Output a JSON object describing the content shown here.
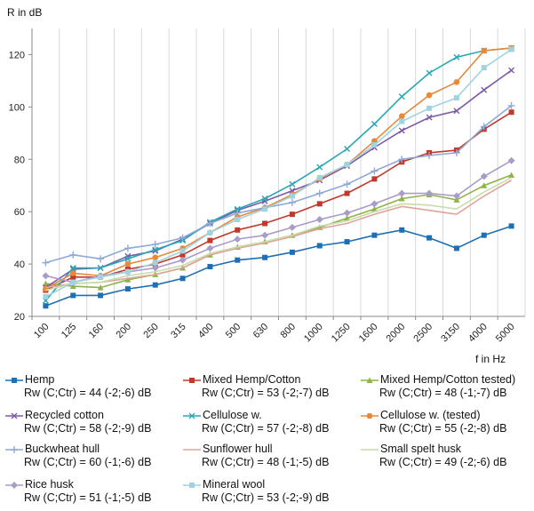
{
  "chart_data": {
    "type": "line",
    "ylabel": "R in dB",
    "xlabel": "f in Hz",
    "ylim": [
      20,
      130
    ],
    "yticks": [
      20,
      40,
      60,
      80,
      100,
      120
    ],
    "grid": "vertical",
    "legend_position": "bottom",
    "categories": [
      "100",
      "125",
      "160",
      "200",
      "250",
      "315",
      "400",
      "500",
      "630",
      "800",
      "1000",
      "1250",
      "1600",
      "2000",
      "2500",
      "3150",
      "4000",
      "5000"
    ],
    "series": [
      {
        "name": "Hemp",
        "rating": "Rw (C;Ctr) = 44 (-2;-6) dB",
        "color": "#1f6fb4",
        "marker": "square",
        "values": [
          24,
          28,
          28,
          30.5,
          32,
          34.5,
          39,
          41.5,
          42.5,
          44.5,
          47,
          48.5,
          51,
          53,
          50,
          46,
          51,
          54.5
        ]
      },
      {
        "name": "Mixed Hemp/Cotton",
        "rating": "Rw (C;Ctr) = 53 (-2;-7) dB",
        "color": "#c0392b",
        "marker": "square",
        "values": [
          30,
          35,
          35,
          38,
          40,
          43.5,
          49,
          53,
          55.5,
          59,
          63,
          67,
          72.5,
          79,
          82.5,
          83.5,
          91.5,
          98
        ]
      },
      {
        "name": "Mixed Hemp/Cotton tested)",
        "rating": "Rw (C;Ctr) = 48 (-1;-7) dB",
        "color": "#8db34a",
        "marker": "triangle",
        "values": [
          32.5,
          31.5,
          31,
          34,
          36,
          38.5,
          43.5,
          46.5,
          48.5,
          51,
          54,
          57.5,
          61,
          65,
          66.5,
          64.5,
          70,
          74
        ]
      },
      {
        "name": "Recycled cotton",
        "rating": "Rw (C;Ctr) = 58 (-2;-9) dB",
        "color": "#7b5aa6",
        "marker": "x",
        "values": [
          31,
          38,
          38.5,
          43,
          45,
          49.5,
          55.5,
          60.5,
          64,
          68,
          72,
          77.5,
          84.5,
          91,
          96,
          98.5,
          106.5,
          114
        ]
      },
      {
        "name": "Cellulose w.",
        "rating": "Rw (C;Ctr) = 57 (-2;-8) dB",
        "color": "#2aa7b5",
        "marker": "x",
        "values": [
          26,
          38.5,
          38.5,
          42,
          45.5,
          49,
          56,
          61,
          65,
          70.5,
          77,
          84,
          93.5,
          104,
          113,
          119,
          121.5,
          122.5
        ]
      },
      {
        "name": "Cellulose w. (tested)",
        "rating": "Rw (C;Ctr) = 55 (-2;-8) dB",
        "color": "#e8883a",
        "marker": "circle",
        "values": [
          30.5,
          36.5,
          35.5,
          40,
          42.5,
          46,
          52,
          58,
          61.5,
          66.5,
          72.5,
          78,
          87,
          96.5,
          104.5,
          109.5,
          121.5,
          122.5
        ]
      },
      {
        "name": "Buckwheat hull",
        "rating": "Rw (C;Ctr) = 60 (-1;-6) dB",
        "color": "#8ea9d6",
        "marker": "plus",
        "values": [
          40.5,
          43.5,
          42,
          46,
          47.5,
          50,
          55.5,
          59.5,
          61.5,
          63.5,
          67,
          70.5,
          75.5,
          80,
          81.5,
          82.5,
          92.5,
          100.5
        ]
      },
      {
        "name": "Sunflower hull",
        "rating": "Rw (C;Ctr) = 48 (-1;-5) dB",
        "color": "#e0a39c",
        "marker": "none",
        "values": [
          31,
          32.5,
          33,
          34.5,
          36,
          38.5,
          43.5,
          46,
          48,
          50.5,
          53.5,
          55.5,
          59,
          62,
          60.5,
          59,
          66,
          72
        ]
      },
      {
        "name": "Small spelt husk",
        "rating": "Rw (C;Ctr) = 49 (-2;-6) dB",
        "color": "#c8dca8",
        "marker": "none",
        "values": [
          30,
          32.5,
          33,
          35.5,
          37,
          39.5,
          44,
          46.5,
          48.5,
          51,
          54.5,
          56.5,
          60,
          63,
          62.5,
          61,
          67.5,
          73
        ]
      },
      {
        "name": "Rice husk",
        "rating": "Rw (C;Ctr) = 51 (-1;-5) dB",
        "color": "#a99cc9",
        "marker": "diamond",
        "values": [
          35.5,
          33,
          35.5,
          37,
          38.5,
          41.5,
          46,
          49.5,
          51,
          54,
          57,
          59.5,
          63,
          67,
          67,
          66,
          73.5,
          79.5
        ]
      },
      {
        "name": "Mineral wool",
        "rating": "Rw (C;Ctr) = 53 (-2;-9) dB",
        "color": "#9fd3e0",
        "marker": "square",
        "values": [
          27.5,
          33,
          35,
          37,
          40.5,
          45,
          52,
          57,
          61,
          66,
          73,
          78,
          85.5,
          94.5,
          99.5,
          103.5,
          115,
          122
        ]
      }
    ]
  }
}
